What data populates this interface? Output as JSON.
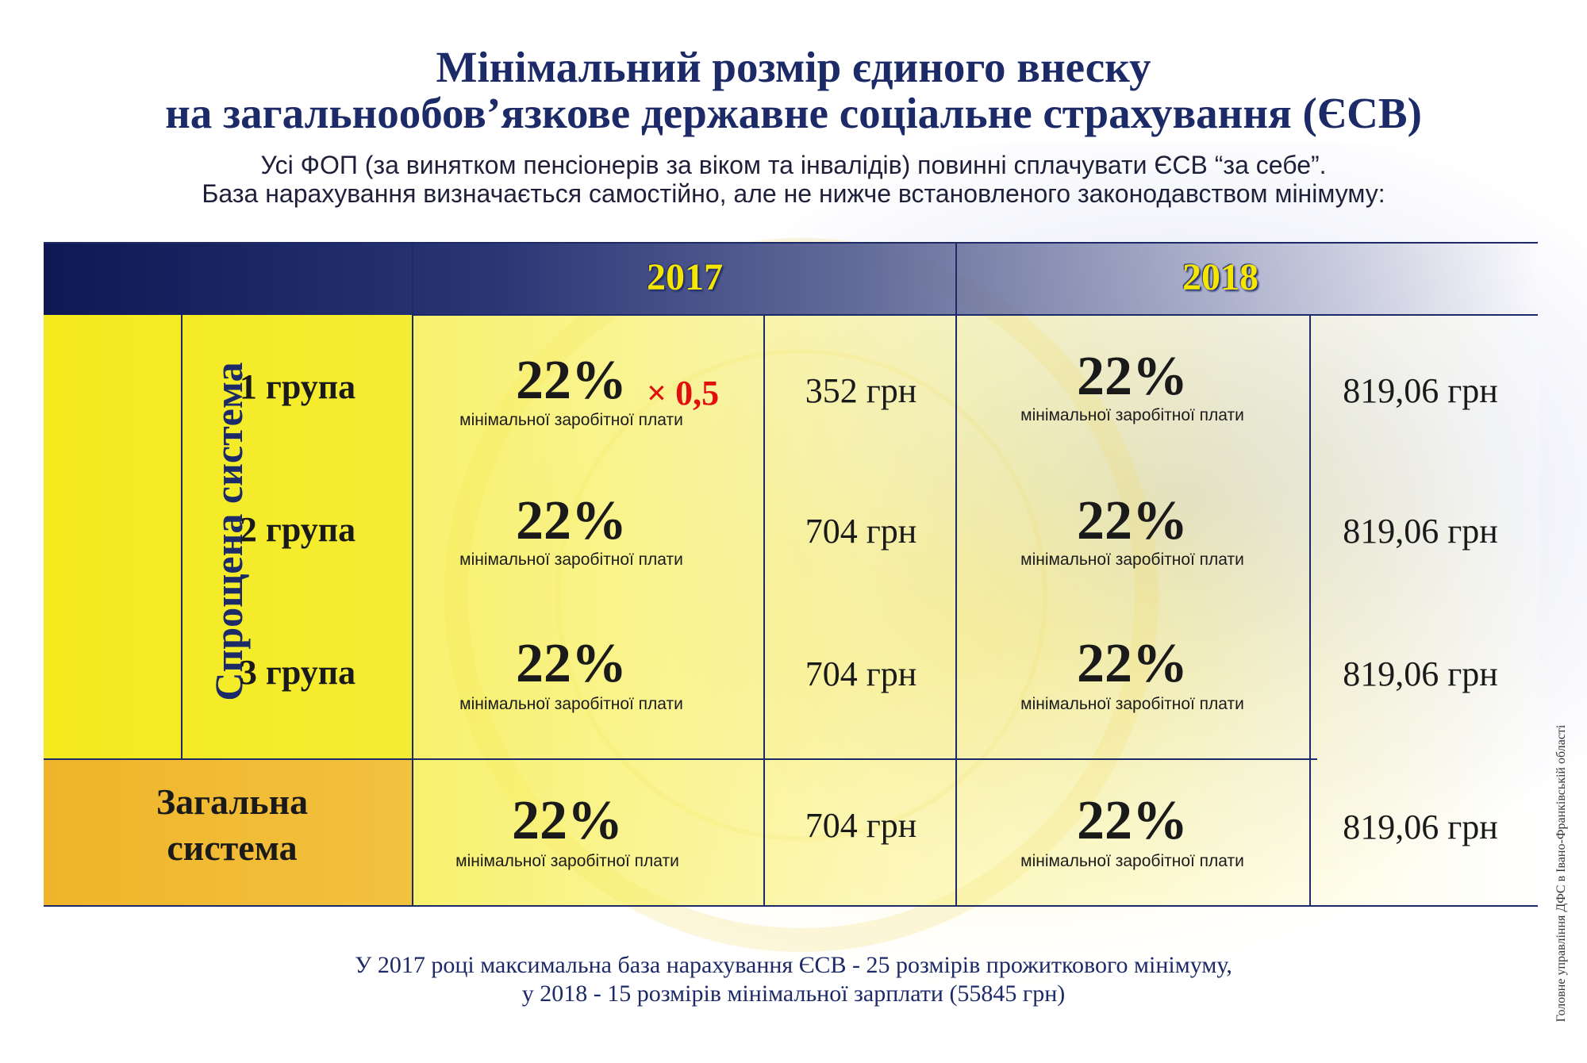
{
  "header": {
    "title_line1": "Мінімальний розмір єдиного внеску",
    "title_line2": "на загальнообов’язкове державне соціальне страхування (ЄСВ)",
    "subtitle_line1": "Усі ФОП (за винятком пенсіонерів за віком та інвалідів) повинні сплачувати ЄСВ “за себе”.",
    "subtitle_line2": "База нарахування визначається самостійно, але не нижче встановленого законодавством мінімуму:"
  },
  "table": {
    "years": [
      "2017",
      "2018"
    ],
    "simplified_label": "Спрощена система",
    "general_label_line1": "Загальна",
    "general_label_line2": "система",
    "min_wage_note": "мінімальної заробітної плати",
    "multiplier_note": "× 0,5",
    "rows": [
      {
        "group": "1 група",
        "pct_2017": "22%",
        "amount_2017": "352 грн",
        "pct_2018": "22%",
        "amount_2018": "819,06 грн"
      },
      {
        "group": "2 група",
        "pct_2017": "22%",
        "amount_2017": "704 грн",
        "pct_2018": "22%",
        "amount_2018": "819,06 грн"
      },
      {
        "group": "3 група",
        "pct_2017": "22%",
        "amount_2017": "704 грн",
        "pct_2018": "22%",
        "amount_2018": "819,06 грн"
      }
    ],
    "general_row": {
      "pct_2017": "22%",
      "amount_2017": "704 грн",
      "pct_2018": "22%",
      "amount_2018": "819,06 грн"
    }
  },
  "footer": {
    "line1": "У 2017 році максимальна база нарахування ЄСВ - 25 розмірів прожиткового мінімуму,",
    "line2": "у 2018 - 15 розмірів мінімальної зарплати (55845 грн)"
  },
  "credit": "Головне управління ДФС в Івано-Франківській області",
  "colors": {
    "navy": "#1d2a68",
    "yellow": "#f4ea1d",
    "orange": "#f0b42a",
    "year_text": "#f5e600",
    "multiplier": "#e20f0f"
  }
}
